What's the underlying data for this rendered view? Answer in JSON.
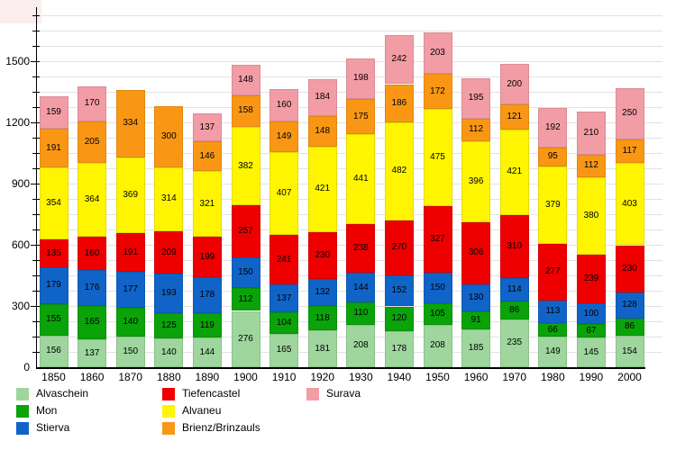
{
  "chart_data": {
    "type": "bar",
    "stacked": true,
    "title": "",
    "xlabel": "",
    "ylabel": "",
    "categories": [
      "1850",
      "1860",
      "1870",
      "1880",
      "1890",
      "1900",
      "1910",
      "1920",
      "1930",
      "1940",
      "1950",
      "1960",
      "1970",
      "1980",
      "1990",
      "2000"
    ],
    "series": [
      {
        "name": "Alvaschein",
        "color": "#9ed69e",
        "values": [
          156,
          137,
          150,
          140,
          144,
          276,
          165,
          181,
          208,
          178,
          208,
          185,
          235,
          149,
          145,
          154
        ]
      },
      {
        "name": "Mon",
        "color": "#0aa30a",
        "values": [
          155,
          165,
          140,
          125,
          119,
          112,
          104,
          118,
          110,
          120,
          105,
          91,
          86,
          66,
          67,
          86
        ]
      },
      {
        "name": "Stierva",
        "color": "#1064c8",
        "values": [
          179,
          176,
          177,
          193,
          178,
          150,
          137,
          132,
          144,
          152,
          150,
          130,
          114,
          113,
          100,
          128
        ]
      },
      {
        "name": "Tiefencastel",
        "color": "#ee0000",
        "values": [
          135,
          160,
          191,
          209,
          199,
          257,
          241,
          230,
          238,
          270,
          327,
          306,
          310,
          277,
          239,
          230
        ]
      },
      {
        "name": "Alvaneu",
        "color": "#fff500",
        "values": [
          354,
          364,
          369,
          314,
          321,
          382,
          407,
          421,
          441,
          482,
          475,
          396,
          421,
          379,
          380,
          403
        ]
      },
      {
        "name": "Brienz/Brinzauls",
        "color": "#f99715",
        "values": [
          191,
          205,
          334,
          300,
          146,
          158,
          149,
          148,
          175,
          186,
          172,
          112,
          121,
          95,
          112,
          117
        ]
      },
      {
        "name": "Surava",
        "color": "#f29ca5",
        "values": [
          159,
          170,
          null,
          null,
          137,
          148,
          160,
          184,
          198,
          242,
          203,
          195,
          200,
          192,
          210,
          250
        ]
      }
    ],
    "ylim": [
      0,
      1790
    ],
    "y_major_ticks": [
      0,
      300,
      600,
      900,
      1200,
      1500
    ],
    "y_minor_step": 75,
    "grid": true,
    "legend_position": "bottom",
    "legend_columns": [
      [
        "Alvaschein",
        "Mon",
        "Stierva"
      ],
      [
        "Tiefencastel",
        "Alvaneu",
        "Brienz/Brinzauls"
      ],
      [
        "Surava"
      ]
    ]
  }
}
